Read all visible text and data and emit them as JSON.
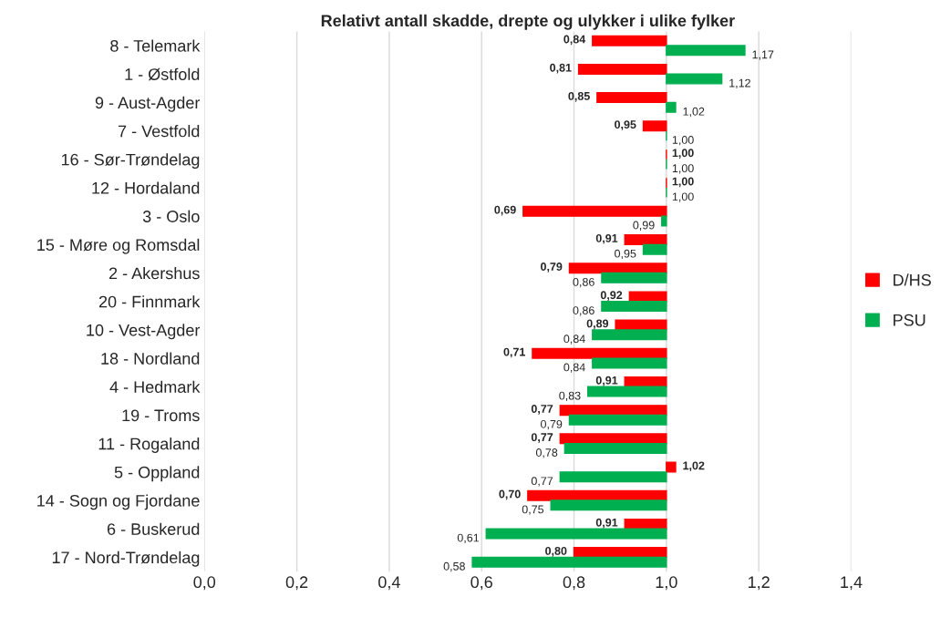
{
  "chart_data": {
    "type": "bar",
    "orientation": "horizontal",
    "title": "Relativt antall skadde, drepte og ulykker i ulike fylker",
    "categories": [
      "8 - Telemark",
      "1 - Østfold",
      "9 - Aust-Agder",
      "7 - Vestfold",
      "16 - Sør-Trøndelag",
      "12 - Hordaland",
      "3 - Oslo",
      "15 - Møre og Romsdal",
      "2 - Akershus",
      "20 - Finnmark",
      "10 - Vest-Agder",
      "18 - Nordland",
      "4 - Hedmark",
      "19 - Troms",
      "11 - Rogaland",
      "5 - Oppland",
      "14 - Sogn og Fjordane",
      "6 - Buskerud",
      "17 - Nord-Trøndelag"
    ],
    "series": [
      {
        "name": "D/HS",
        "color": "#ff0000",
        "base": [
          1,
          1,
          1,
          1,
          1,
          1,
          1,
          1,
          1,
          1,
          1,
          1,
          1,
          1,
          1,
          1,
          1,
          1,
          1
        ],
        "values": [
          -0.16,
          -0.19,
          -0.15,
          -0.05,
          0,
          0,
          -0.31,
          -0.09,
          -0.21,
          -0.08,
          -0.11,
          -0.29,
          -0.09,
          -0.23,
          -0.23,
          0.02,
          -0.3,
          -0.09,
          -0.2
        ],
        "value_labels": [
          "0,84",
          "0,81",
          "0,85",
          "0,95",
          "1,00",
          "1,00",
          "0,69",
          "0,91",
          "0,79",
          "0,92",
          "0,89",
          "0,71",
          "0,91",
          "0,77",
          "0,77",
          "1,02",
          "0,70",
          "0,91",
          "0,80"
        ]
      },
      {
        "name": "PSU",
        "color": "#00b050",
        "base": [
          1,
          1,
          1,
          1,
          1,
          1,
          1,
          1,
          1,
          1,
          1,
          1,
          1,
          1,
          1,
          1,
          1,
          1,
          1
        ],
        "values": [
          0.17,
          0.12,
          0.02,
          0,
          0,
          0,
          -0.01,
          -0.05,
          -0.14,
          -0.14,
          -0.16,
          -0.16,
          -0.17,
          -0.21,
          -0.22,
          -0.23,
          -0.25,
          -0.39,
          -0.42
        ],
        "value_labels": [
          "1,17",
          "1,12",
          "1,02",
          "1,00",
          "1,00",
          "1,00",
          "0,99",
          "0,95",
          "0,86",
          "0,86",
          "0,84",
          "0,84",
          "0,83",
          "0,79",
          "0,78",
          "0,77",
          "0,75",
          "0,61",
          "0,58"
        ]
      }
    ],
    "xlim": [
      0,
      1.4
    ],
    "xticks": [
      {
        "value": 0,
        "label": "0,0"
      },
      {
        "value": 0.2,
        "label": "0,2"
      },
      {
        "value": 0.4,
        "label": "0,4"
      },
      {
        "value": 0.6,
        "label": "0,6"
      },
      {
        "value": 0.8,
        "label": "0,8"
      },
      {
        "value": 1.0,
        "label": "1,0"
      },
      {
        "value": 1.2,
        "label": "1,2"
      },
      {
        "value": 1.4,
        "label": "1,4"
      }
    ],
    "grid": "x",
    "legend": "right"
  }
}
